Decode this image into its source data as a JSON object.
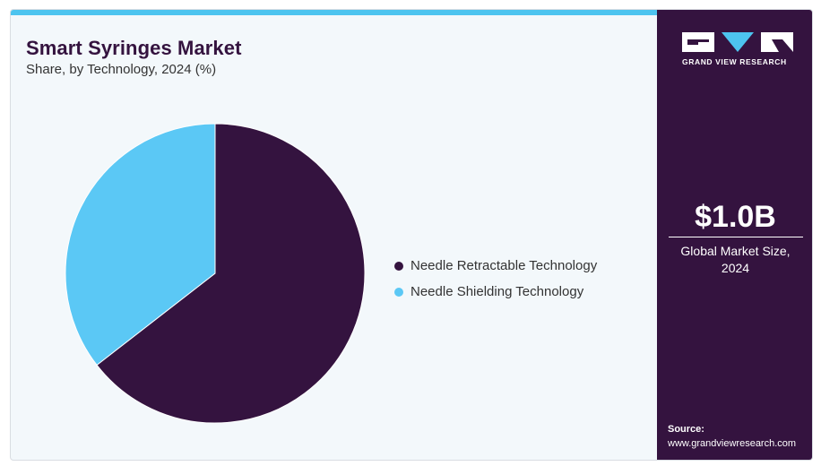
{
  "header": {
    "title": "Smart Syringes Market",
    "subtitle": "Share, by Technology, 2024 (%)"
  },
  "chart_data": {
    "type": "pie",
    "title": "Smart Syringes Market",
    "subtitle": "Share, by Technology, 2024 (%)",
    "categories": [
      "Needle Retractable Technology",
      "Needle Shielding Technology"
    ],
    "values": [
      64.5,
      35.5
    ],
    "colors": [
      "#34133f",
      "#5bc8f5"
    ],
    "legend_position": "right"
  },
  "sidebar": {
    "logo_text": "GRAND VIEW RESEARCH",
    "market_size": "$1.0B",
    "market_label_line1": "Global Market Size,",
    "market_label_line2": "2024",
    "source_title": "Source:",
    "source_url": "www.grandviewresearch.com"
  }
}
